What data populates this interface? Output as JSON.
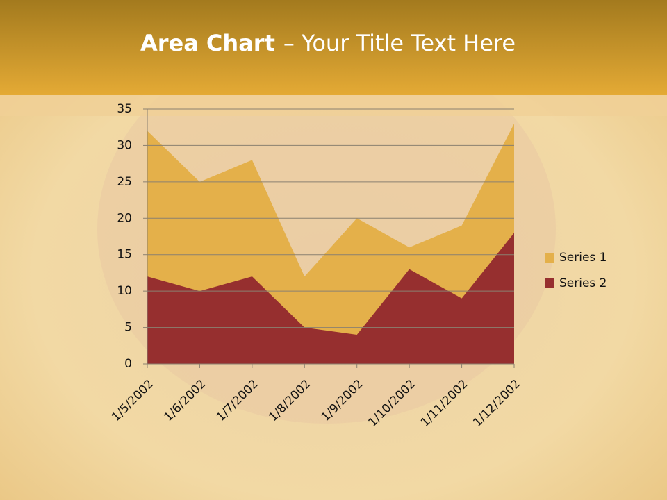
{
  "chart_data": {
    "type": "area",
    "title": [
      "Area Chart",
      "– Your Title Text Here"
    ],
    "categories": [
      "1/5/2002",
      "1/6/2002",
      "1/7/2002",
      "1/8/2002",
      "1/9/2002",
      "1/10/2002",
      "1/11/2002",
      "1/12/2002"
    ],
    "series": [
      {
        "name": "Series 1",
        "color": "#e4b04a",
        "values": [
          32,
          25,
          28,
          12,
          20,
          16,
          19,
          33
        ]
      },
      {
        "name": "Series 2",
        "color": "#962f2f",
        "values": [
          12,
          10,
          12,
          5,
          4,
          13,
          9,
          18
        ]
      }
    ],
    "ylim": [
      0,
      35
    ],
    "yticks": [
      0,
      5,
      10,
      15,
      20,
      25,
      30,
      35
    ],
    "grid": true,
    "legend": "right"
  }
}
